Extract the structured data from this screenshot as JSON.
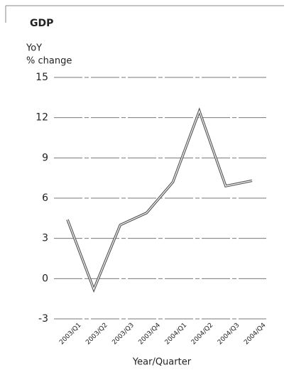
{
  "chart_data": {
    "type": "line",
    "title": "GDP",
    "y_label": [
      "YoY",
      "% change"
    ],
    "x_label": "Year/Quarter",
    "categories": [
      "2003/Q1",
      "2003/Q2",
      "2003/Q3",
      "2003/Q4",
      "2004/Q1",
      "2004/Q2",
      "2004/Q3",
      "2004/Q4"
    ],
    "series": [
      {
        "color": "#555555",
        "values": [
          4.4,
          -0.8,
          4.0,
          4.9,
          7.2,
          12.5,
          6.9,
          7.3
        ]
      }
    ],
    "ylim": [
      -3,
      15
    ],
    "yticks": [
      -3,
      0,
      3,
      6,
      9,
      12,
      15
    ],
    "grid": true
  }
}
